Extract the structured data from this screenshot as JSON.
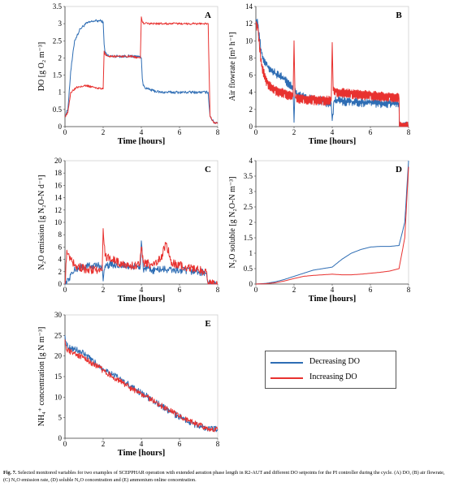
{
  "colors": {
    "decreasing": "#2e6db4",
    "increasing": "#e8312f",
    "axis": "#444444",
    "frame": "#cfcfcf"
  },
  "legend": {
    "decreasing_label": "Decreasing DO",
    "increasing_label": "Increasing DO"
  },
  "caption": {
    "label": "Fig. 7.",
    "text": "Selected monitored variables for two examples of SCEPPHAR operation with extended aeration phase length in R2-AUT and different DO setpoints for the PI controller during the cycle. (A) DO, (B) air flowrate, (C) N₂O emission rate, (D) soluble N₂O concentration and (E) ammonium online concentration."
  },
  "chart_data": [
    {
      "id": "A",
      "type": "line",
      "panel_letter": "A",
      "xlabel": "Time [hours]",
      "ylabel": "DO [g O₂ m⁻³]",
      "xlim": [
        0,
        8
      ],
      "ylim": [
        0,
        3.5
      ],
      "xticks": [
        0,
        2,
        4,
        6,
        8
      ],
      "yticks": [
        0,
        0.5,
        1,
        1.5,
        2,
        2.5,
        3,
        3.5
      ],
      "yticklabels": [
        "0",
        "0.5",
        "1",
        "1.5",
        "2",
        "2.5",
        "3",
        "3.5"
      ],
      "series": [
        {
          "name": "Decreasing DO",
          "color_key": "decreasing",
          "noise": 0.04,
          "osc": 0.0,
          "x": [
            0,
            0.15,
            0.3,
            0.5,
            0.8,
            1.1,
            1.5,
            1.9,
            2.0,
            2.05,
            2.1,
            2.3,
            2.8,
            3.4,
            3.9,
            4.0,
            4.05,
            4.1,
            4.3,
            4.6,
            5.0,
            6.0,
            7.0,
            7.5,
            7.6,
            7.8,
            8.0
          ],
          "y": [
            0.3,
            0.5,
            1.6,
            2.5,
            2.85,
            3.0,
            3.08,
            3.08,
            3.05,
            2.4,
            2.15,
            2.05,
            2.05,
            2.05,
            2.05,
            2.0,
            1.4,
            1.2,
            1.1,
            1.05,
            1.0,
            1.0,
            1.0,
            1.0,
            0.3,
            0.12,
            0.12
          ]
        },
        {
          "name": "Increasing DO",
          "color_key": "increasing",
          "noise": 0.03,
          "osc": 0.0,
          "x": [
            0,
            0.15,
            0.3,
            0.6,
            1.0,
            1.5,
            1.9,
            2.0,
            2.05,
            2.1,
            2.3,
            2.8,
            3.4,
            3.95,
            4.0,
            4.05,
            4.15,
            4.4,
            5.0,
            6.0,
            7.0,
            7.5,
            7.6,
            7.8,
            8.0
          ],
          "y": [
            0.3,
            0.4,
            1.0,
            1.15,
            1.2,
            1.15,
            1.1,
            1.1,
            2.2,
            2.1,
            2.05,
            2.05,
            2.05,
            2.0,
            3.2,
            3.05,
            3.0,
            3.0,
            3.0,
            3.0,
            3.0,
            3.0,
            0.3,
            0.1,
            0.1
          ]
        }
      ]
    },
    {
      "id": "B",
      "type": "line",
      "panel_letter": "B",
      "xlabel": "Time [hours]",
      "ylabel": "Air flowrate [m³ h⁻¹]",
      "xlim": [
        0,
        8
      ],
      "ylim": [
        0,
        14
      ],
      "xticks": [
        0,
        2,
        4,
        6,
        8
      ],
      "yticks": [
        0,
        2,
        4,
        6,
        8,
        10,
        12,
        14
      ],
      "yticklabels": [
        "0",
        "2",
        "4",
        "6",
        "8",
        "10",
        "12",
        "14"
      ],
      "series": [
        {
          "name": "Decreasing DO",
          "color_key": "decreasing",
          "noise": 0.25,
          "osc": 0.3,
          "x": [
            0,
            0.1,
            0.3,
            0.6,
            1.0,
            1.5,
            1.95,
            2.0,
            2.05,
            2.1,
            2.5,
            3.0,
            3.5,
            3.95,
            4.0,
            4.1,
            4.3,
            5.0,
            6.0,
            7.0,
            7.5,
            7.52,
            8.0
          ],
          "y": [
            12.5,
            12.0,
            8.5,
            7.0,
            6.2,
            5.5,
            4.5,
            0.5,
            4.5,
            3.8,
            3.4,
            3.1,
            2.9,
            2.7,
            0.7,
            3.0,
            3.0,
            2.9,
            2.8,
            2.7,
            2.7,
            0,
            0
          ]
        },
        {
          "name": "Increasing DO",
          "color_key": "increasing",
          "noise": 0.12,
          "osc": 0.45,
          "x": [
            0,
            0.1,
            0.3,
            0.6,
            1.0,
            1.5,
            1.95,
            2.0,
            2.05,
            2.1,
            2.5,
            3.0,
            3.5,
            3.95,
            4.0,
            4.05,
            4.2,
            5.0,
            6.0,
            7.0,
            7.5,
            7.52,
            8.0
          ],
          "y": [
            12.0,
            11.5,
            7.0,
            5.0,
            4.2,
            3.8,
            3.5,
            10.0,
            3.5,
            3.3,
            3.2,
            3.1,
            3.0,
            3.0,
            9.8,
            4.2,
            4.0,
            3.8,
            3.6,
            3.4,
            3.3,
            0,
            0
          ]
        }
      ]
    },
    {
      "id": "C",
      "type": "line",
      "panel_letter": "C",
      "xlabel": "Time [hours]",
      "ylabel": "N₂O emission [g N₂O-N d⁻¹]",
      "xlim": [
        0,
        8
      ],
      "ylim": [
        0,
        20
      ],
      "xticks": [
        0,
        2,
        4,
        6,
        8
      ],
      "yticks": [
        0,
        2,
        4,
        6,
        8,
        10,
        12,
        14,
        16,
        18,
        20
      ],
      "yticklabels": [
        "0",
        "2",
        "4",
        "6",
        "8",
        "10",
        "12",
        "14",
        "16",
        "18",
        "20"
      ],
      "series": [
        {
          "name": "Decreasing DO",
          "color_key": "decreasing",
          "noise": 0.6,
          "osc": 0.0,
          "x": [
            0,
            0.1,
            0.3,
            0.6,
            1.0,
            1.5,
            1.95,
            2.0,
            2.1,
            2.5,
            3.0,
            3.5,
            3.95,
            4.0,
            4.1,
            4.5,
            5.0,
            6.0,
            7.0,
            7.4,
            7.5,
            8.0
          ],
          "y": [
            0,
            0.2,
            1.5,
            2.5,
            2.8,
            3.0,
            3.0,
            0.5,
            3.0,
            3.2,
            3.0,
            2.8,
            2.8,
            7.0,
            2.5,
            2.2,
            2.4,
            2.2,
            2.0,
            1.8,
            0,
            0
          ]
        },
        {
          "name": "Increasing DO",
          "color_key": "increasing",
          "noise": 0.7,
          "osc": 0.0,
          "x": [
            0,
            0.1,
            0.3,
            0.6,
            1.0,
            1.5,
            1.95,
            2.0,
            2.1,
            2.5,
            3.0,
            3.5,
            3.9,
            4.0,
            4.1,
            4.5,
            5.0,
            5.3,
            5.6,
            6.0,
            7.0,
            7.4,
            7.5,
            8.0
          ],
          "y": [
            0,
            5.5,
            4.0,
            3.0,
            2.5,
            2.3,
            2.2,
            9.0,
            4.5,
            4.0,
            3.2,
            3.0,
            3.0,
            6.0,
            3.5,
            3.2,
            4.0,
            6.5,
            3.5,
            3.0,
            2.3,
            2.0,
            0,
            0
          ]
        }
      ]
    },
    {
      "id": "D",
      "type": "line",
      "panel_letter": "D",
      "xlabel": "Time [hours]",
      "ylabel": "N₂O soluble [g N₂O-N m⁻³]",
      "xlim": [
        0,
        8
      ],
      "ylim": [
        0,
        4
      ],
      "xticks": [
        0,
        2,
        4,
        6,
        8
      ],
      "yticks": [
        0,
        0.5,
        1,
        1.5,
        2,
        2.5,
        3,
        3.5,
        4
      ],
      "yticklabels": [
        "0",
        "0.5",
        "1",
        "1.5",
        "2",
        "2.5",
        "3",
        "3.5",
        "4"
      ],
      "series": [
        {
          "name": "Decreasing DO",
          "color_key": "decreasing",
          "noise": 0.0,
          "osc": 0.0,
          "x": [
            0,
            0.5,
            1.0,
            1.5,
            2.0,
            2.5,
            3.0,
            3.5,
            4.0,
            4.5,
            5.0,
            5.5,
            6.0,
            6.5,
            7.0,
            7.5,
            7.8,
            8.0
          ],
          "y": [
            0,
            0.02,
            0.07,
            0.15,
            0.25,
            0.35,
            0.45,
            0.5,
            0.55,
            0.8,
            1.0,
            1.12,
            1.2,
            1.22,
            1.22,
            1.25,
            2.0,
            4.0
          ]
        },
        {
          "name": "Increasing DO",
          "color_key": "increasing",
          "noise": 0.0,
          "osc": 0.0,
          "x": [
            0,
            0.5,
            1.0,
            1.5,
            2.0,
            2.5,
            3.0,
            3.5,
            4.0,
            4.5,
            5.0,
            5.5,
            6.0,
            6.5,
            7.0,
            7.5,
            7.8,
            8.0
          ],
          "y": [
            0,
            0.01,
            0.04,
            0.1,
            0.18,
            0.25,
            0.28,
            0.3,
            0.32,
            0.3,
            0.3,
            0.32,
            0.35,
            0.38,
            0.42,
            0.5,
            1.5,
            3.8
          ]
        }
      ]
    },
    {
      "id": "E",
      "type": "line",
      "panel_letter": "E",
      "xlabel": "Time [hours]",
      "ylabel": "NH₄⁺ concentration [g N m⁻³]",
      "xlim": [
        0,
        8
      ],
      "ylim": [
        0,
        30
      ],
      "xticks": [
        0,
        2,
        4,
        6,
        8
      ],
      "yticks": [
        0,
        5,
        10,
        15,
        20,
        25,
        30
      ],
      "yticklabels": [
        "0",
        "5",
        "10",
        "15",
        "20",
        "25",
        "30"
      ],
      "series": [
        {
          "name": "Decreasing DO",
          "color_key": "decreasing",
          "noise": 0.8,
          "osc": 0.0,
          "x": [
            0,
            0.1,
            0.3,
            0.6,
            1.0,
            1.5,
            2.0,
            2.5,
            3.0,
            3.5,
            4.0,
            4.5,
            5.0,
            5.5,
            6.0,
            6.5,
            7.0,
            7.5,
            8.0
          ],
          "y": [
            25,
            22.5,
            22,
            21.5,
            20.5,
            18.5,
            17,
            15.5,
            14,
            12.5,
            11,
            9.5,
            8,
            6.5,
            5.2,
            4.0,
            3.0,
            2.3,
            2.2
          ]
        },
        {
          "name": "Increasing DO",
          "color_key": "increasing",
          "noise": 0.7,
          "osc": 0.0,
          "x": [
            0,
            0.1,
            0.3,
            0.6,
            1.0,
            1.5,
            2.0,
            2.5,
            3.0,
            3.5,
            4.0,
            4.5,
            5.0,
            5.5,
            6.0,
            6.5,
            7.0,
            7.5,
            8.0
          ],
          "y": [
            24,
            21.5,
            21,
            20.5,
            19.5,
            18,
            16.5,
            15,
            13.5,
            12,
            10.8,
            9.5,
            8,
            6.7,
            5.4,
            4.2,
            3.2,
            2.4,
            2.2
          ]
        }
      ]
    }
  ]
}
